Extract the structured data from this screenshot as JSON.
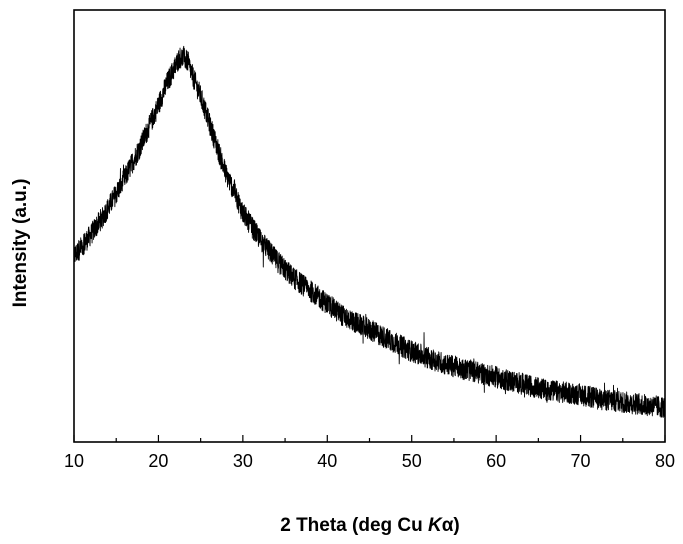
{
  "chart_data": {
    "type": "line",
    "xlabel": "2 Theta (deg Cu Kα)",
    "xlabel_parts": {
      "prefix": "2 Theta (deg Cu ",
      "italic": "K",
      "suffix": "α)"
    },
    "ylabel": "Intensity (a.u.)",
    "xlim": [
      10,
      80
    ],
    "ylim": [
      0,
      1
    ],
    "x_ticks": [
      10,
      20,
      30,
      40,
      50,
      60,
      70,
      80
    ],
    "y_ticks_labeled": false,
    "grid": false,
    "legend": "none",
    "line_color": "#000000",
    "series": [
      {
        "x": [
          10,
          12,
          14,
          16,
          18,
          20,
          21,
          22,
          22.5,
          23,
          23.5,
          24,
          25,
          26,
          27,
          28,
          29,
          30,
          32,
          34,
          36,
          38,
          40,
          42,
          44,
          46,
          48,
          50,
          52,
          54,
          56,
          58,
          60,
          62,
          64,
          66,
          68,
          70,
          72,
          74,
          76,
          78,
          80
        ],
        "y": [
          0.43,
          0.48,
          0.54,
          0.61,
          0.69,
          0.78,
          0.83,
          0.87,
          0.89,
          0.89,
          0.88,
          0.85,
          0.8,
          0.74,
          0.68,
          0.62,
          0.58,
          0.53,
          0.47,
          0.42,
          0.38,
          0.35,
          0.32,
          0.29,
          0.27,
          0.25,
          0.23,
          0.21,
          0.195,
          0.18,
          0.17,
          0.16,
          0.15,
          0.14,
          0.13,
          0.12,
          0.115,
          0.11,
          0.1,
          0.095,
          0.09,
          0.085,
          0.08
        ],
        "noise_amplitude": 0.025
      }
    ]
  }
}
